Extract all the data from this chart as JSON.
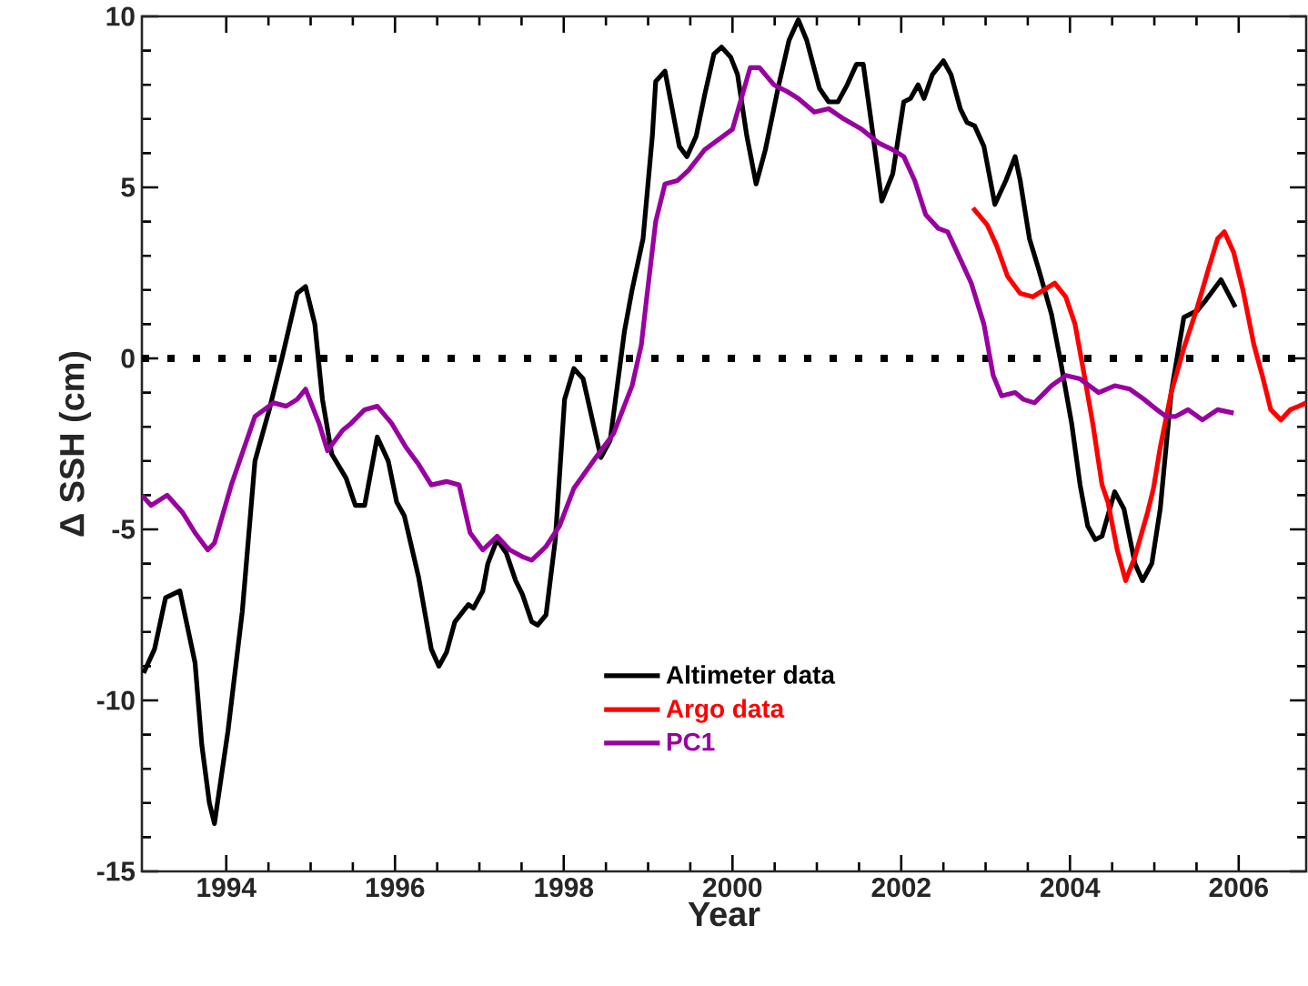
{
  "chart_data": {
    "type": "line",
    "xlabel": "Year",
    "ylabel": "Δ SSH (cm)",
    "xlim": [
      1993,
      2006.8
    ],
    "xticks": [
      1994,
      1996,
      1998,
      2000,
      2002,
      2004,
      2006
    ],
    "ylim": [
      -15,
      10
    ],
    "yticks": [
      -15,
      -10,
      -5,
      0,
      5,
      10
    ],
    "legend": "bottom",
    "grid": false,
    "marker": "none",
    "line_style": "solid",
    "ref_lines": [
      {
        "axis": "y",
        "value": 0,
        "color": "#000000",
        "line_style": "dotted"
      }
    ],
    "series": [
      {
        "name": "Altimeter data",
        "color": "#000000",
        "x": [
          1993.02,
          1993.15,
          1993.28,
          1993.45,
          1993.63,
          1993.71,
          1993.8,
          1993.86,
          1994.02,
          1994.19,
          1994.34,
          1994.51,
          1994.66,
          1994.84,
          1994.94,
          1995.05,
          1995.14,
          1995.25,
          1995.42,
          1995.53,
          1995.64,
          1995.79,
          1995.92,
          1996.02,
          1996.11,
          1996.28,
          1996.43,
          1996.52,
          1996.61,
          1996.71,
          1996.87,
          1996.93,
          1997.04,
          1997.1,
          1997.21,
          1997.32,
          1997.43,
          1997.51,
          1997.62,
          1997.69,
          1997.79,
          1997.9,
          1998.01,
          1998.12,
          1998.23,
          1998.44,
          1998.55,
          1998.72,
          1998.81,
          1998.94,
          1999.05,
          1999.09,
          1999.2,
          1999.37,
          1999.46,
          1999.57,
          1999.67,
          1999.78,
          1999.87,
          1999.98,
          2000.06,
          2000.17,
          2000.28,
          2000.39,
          2000.54,
          2000.67,
          2000.78,
          2000.88,
          2001.03,
          2001.14,
          2001.25,
          2001.36,
          2001.47,
          2001.55,
          2001.64,
          2001.77,
          2001.9,
          2002.03,
          2002.11,
          2002.2,
          2002.27,
          2002.37,
          2002.5,
          2002.59,
          2002.7,
          2002.78,
          2002.87,
          2002.98,
          2003.11,
          2003.24,
          2003.35,
          2003.41,
          2003.52,
          2003.63,
          2003.78,
          2003.89,
          2004.02,
          2004.12,
          2004.21,
          2004.3,
          2004.38,
          2004.53,
          2004.64,
          2004.77,
          2004.86,
          2004.97,
          2005.07,
          2005.2,
          2005.35,
          2005.51,
          2005.61,
          2005.79,
          2005.96
        ],
        "values": [
          -9.2,
          -8.5,
          -7.0,
          -6.8,
          -8.9,
          -11.3,
          -13.0,
          -13.6,
          -10.9,
          -7.4,
          -3.0,
          -1.5,
          0,
          1.9,
          2.1,
          1.0,
          -1.2,
          -2.8,
          -3.5,
          -4.3,
          -4.3,
          -2.3,
          -3.0,
          -4.2,
          -4.6,
          -6.4,
          -8.5,
          -9.0,
          -8.6,
          -7.7,
          -7.2,
          -7.3,
          -6.8,
          -6.0,
          -5.3,
          -5.7,
          -6.5,
          -6.9,
          -7.7,
          -7.8,
          -7.5,
          -5.3,
          -1.2,
          -0.3,
          -0.6,
          -2.9,
          -2.4,
          0.8,
          2.0,
          3.5,
          6.5,
          8.1,
          8.4,
          6.2,
          5.9,
          6.5,
          7.7,
          8.9,
          9.1,
          8.8,
          8.3,
          6.5,
          5.1,
          6.1,
          7.9,
          9.3,
          9.9,
          9.3,
          7.9,
          7.5,
          7.5,
          8.0,
          8.6,
          8.6,
          7.0,
          4.6,
          5.4,
          7.5,
          7.6,
          8.0,
          7.6,
          8.3,
          8.7,
          8.3,
          7.3,
          6.9,
          6.8,
          6.2,
          4.5,
          5.2,
          5.9,
          5.2,
          3.5,
          2.6,
          1.3,
          -0.1,
          -1.9,
          -3.7,
          -4.9,
          -5.3,
          -5.2,
          -3.9,
          -4.4,
          -6.0,
          -6.5,
          -6.0,
          -4.4,
          -1.0,
          1.2,
          1.4,
          1.7,
          2.3,
          1.5
        ]
      },
      {
        "name": "Argo data",
        "color": "#ff0000",
        "x": [
          2002.85,
          2003.02,
          2003.13,
          2003.26,
          2003.41,
          2003.56,
          2003.69,
          2003.82,
          2003.95,
          2004.06,
          2004.17,
          2004.27,
          2004.38,
          2004.45,
          2004.56,
          2004.66,
          2004.77,
          2004.92,
          2004.99,
          2005.07,
          2005.2,
          2005.35,
          2005.51,
          2005.64,
          2005.75,
          2005.83,
          2005.94,
          2006.05,
          2006.18,
          2006.29,
          2006.38,
          2006.5,
          2006.61,
          2006.71,
          2006.8
        ],
        "values": [
          4.4,
          3.9,
          3.3,
          2.4,
          1.9,
          1.8,
          2.0,
          2.2,
          1.8,
          1.0,
          -0.5,
          -1.9,
          -3.7,
          -4.2,
          -5.6,
          -6.5,
          -5.8,
          -4.5,
          -3.8,
          -2.6,
          -1.0,
          0.3,
          1.5,
          2.6,
          3.5,
          3.7,
          3.1,
          2.0,
          0.4,
          -0.6,
          -1.5,
          -1.8,
          -1.5,
          -1.4,
          -1.3
        ]
      },
      {
        "name": "PC1",
        "color": "#9900a0",
        "x": [
          1993.0,
          1993.11,
          1993.3,
          1993.48,
          1993.63,
          1993.78,
          1993.86,
          1994.06,
          1994.34,
          1994.56,
          1994.71,
          1994.84,
          1994.94,
          1995.1,
          1995.2,
          1995.38,
          1995.48,
          1995.64,
          1995.79,
          1995.96,
          1996.13,
          1996.28,
          1996.43,
          1996.61,
          1996.76,
          1996.89,
          1997.04,
          1997.21,
          1997.36,
          1997.51,
          1997.62,
          1997.79,
          1997.95,
          1998.12,
          1998.38,
          1998.59,
          1998.81,
          1998.92,
          1998.98,
          1999.09,
          1999.2,
          1999.35,
          1999.48,
          1999.67,
          1999.89,
          2000.0,
          2000.21,
          2000.32,
          2000.49,
          2000.65,
          2000.78,
          2000.97,
          2001.14,
          2001.32,
          2001.53,
          2001.73,
          2001.9,
          2002.03,
          2002.16,
          2002.29,
          2002.44,
          2002.55,
          2002.7,
          2002.83,
          2002.98,
          2003.09,
          2003.19,
          2003.35,
          2003.45,
          2003.58,
          2003.78,
          2003.95,
          2004.12,
          2004.34,
          2004.53,
          2004.71,
          2004.88,
          2005.03,
          2005.14,
          2005.25,
          2005.4,
          2005.57,
          2005.75,
          2005.94
        ],
        "values": [
          -4.0,
          -4.3,
          -4.0,
          -4.5,
          -5.1,
          -5.6,
          -5.4,
          -3.7,
          -1.7,
          -1.3,
          -1.4,
          -1.2,
          -0.9,
          -1.9,
          -2.7,
          -2.1,
          -1.9,
          -1.5,
          -1.4,
          -1.9,
          -2.6,
          -3.1,
          -3.7,
          -3.6,
          -3.7,
          -5.1,
          -5.6,
          -5.2,
          -5.6,
          -5.8,
          -5.9,
          -5.5,
          -4.9,
          -3.8,
          -2.9,
          -2.2,
          -0.8,
          0.4,
          1.7,
          4.0,
          5.1,
          5.2,
          5.5,
          6.1,
          6.5,
          6.7,
          8.5,
          8.5,
          8.0,
          7.8,
          7.6,
          7.2,
          7.3,
          7.0,
          6.7,
          6.3,
          6.1,
          5.9,
          5.2,
          4.2,
          3.8,
          3.7,
          2.9,
          2.2,
          1.0,
          -0.5,
          -1.1,
          -1.0,
          -1.2,
          -1.3,
          -0.8,
          -0.5,
          -0.6,
          -1.0,
          -0.8,
          -0.9,
          -1.2,
          -1.5,
          -1.7,
          -1.7,
          -1.5,
          -1.8,
          -1.5,
          -1.6
        ]
      }
    ]
  }
}
